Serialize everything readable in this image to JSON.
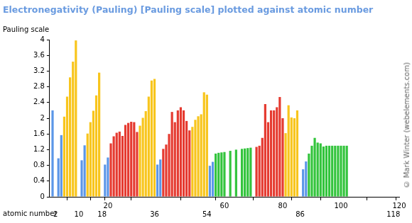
{
  "chart_data": {
    "type": "bar",
    "title": "Electronegativity (Pauling) [Pauling scale] plotted against atomic number",
    "ylabel": "Pauling scale",
    "xlabel": "atomic number",
    "annotations": [
      "© Mark Winter (webelements.com)"
    ],
    "x": [
      1,
      2,
      3,
      4,
      5,
      6,
      7,
      8,
      9,
      10,
      11,
      12,
      13,
      14,
      15,
      16,
      17,
      18,
      19,
      20,
      21,
      22,
      23,
      24,
      25,
      26,
      27,
      28,
      29,
      30,
      31,
      32,
      33,
      34,
      35,
      36,
      37,
      38,
      39,
      40,
      41,
      42,
      43,
      44,
      45,
      46,
      47,
      48,
      49,
      50,
      51,
      52,
      53,
      54,
      55,
      56,
      57,
      58,
      59,
      60,
      61,
      62,
      63,
      64,
      65,
      66,
      67,
      68,
      69,
      70,
      71,
      72,
      73,
      74,
      75,
      76,
      77,
      78,
      79,
      80,
      81,
      82,
      83,
      84,
      85,
      86,
      87,
      88,
      89,
      90,
      91,
      92,
      93,
      94,
      95,
      96,
      97,
      98,
      99,
      100,
      101,
      102,
      103,
      104,
      105,
      106,
      107,
      108,
      109,
      110,
      111,
      112,
      113,
      114,
      115,
      116,
      117,
      118
    ],
    "values": [
      2.2,
      null,
      0.98,
      1.57,
      2.04,
      2.55,
      3.04,
      3.44,
      3.98,
      null,
      0.93,
      1.31,
      1.61,
      1.9,
      2.19,
      2.58,
      3.16,
      null,
      0.82,
      1.0,
      1.36,
      1.54,
      1.63,
      1.66,
      1.55,
      1.83,
      1.88,
      1.91,
      1.9,
      1.65,
      1.81,
      2.01,
      2.18,
      2.55,
      2.96,
      3.0,
      0.82,
      0.95,
      1.22,
      1.33,
      1.6,
      2.16,
      1.9,
      2.2,
      2.28,
      2.2,
      1.93,
      1.69,
      1.78,
      1.96,
      2.05,
      2.1,
      2.66,
      2.6,
      0.79,
      0.89,
      1.1,
      1.12,
      1.13,
      1.14,
      null,
      1.17,
      null,
      1.2,
      null,
      1.22,
      1.23,
      1.24,
      1.25,
      null,
      1.27,
      1.3,
      1.5,
      2.36,
      1.9,
      2.2,
      2.2,
      2.28,
      2.54,
      2.0,
      1.62,
      2.33,
      2.02,
      2.0,
      2.2,
      null,
      0.7,
      0.9,
      1.1,
      1.3,
      1.5,
      1.38,
      1.36,
      1.28,
      1.3,
      1.3,
      1.3,
      1.3,
      1.3,
      1.3,
      1.3,
      1.3,
      null,
      null,
      null,
      null,
      null,
      null,
      null,
      null,
      null,
      null,
      null,
      null,
      null,
      null,
      null,
      null
    ],
    "colors": [
      "#5b96e8",
      null,
      "#5b96e8",
      "#5b96e8",
      "#f8c51c",
      "#f8c51c",
      "#f8c51c",
      "#f8c51c",
      "#f8c51c",
      null,
      "#5b96e8",
      "#5b96e8",
      "#f8c51c",
      "#f8c51c",
      "#f8c51c",
      "#f8c51c",
      "#f8c51c",
      null,
      "#5b96e8",
      "#5b96e8",
      "#e53a30",
      "#e53a30",
      "#e53a30",
      "#e53a30",
      "#e53a30",
      "#e53a30",
      "#e53a30",
      "#e53a30",
      "#e53a30",
      "#e53a30",
      "#f8c51c",
      "#f8c51c",
      "#f8c51c",
      "#f8c51c",
      "#f8c51c",
      "#f8c51c",
      "#5b96e8",
      "#5b96e8",
      "#e53a30",
      "#e53a30",
      "#e53a30",
      "#e53a30",
      "#e53a30",
      "#e53a30",
      "#e53a30",
      "#e53a30",
      "#e53a30",
      "#e53a30",
      "#f8c51c",
      "#f8c51c",
      "#f8c51c",
      "#f8c51c",
      "#f8c51c",
      "#f8c51c",
      "#5b96e8",
      "#5b96e8",
      "#33c43c",
      "#33c43c",
      "#33c43c",
      "#33c43c",
      null,
      "#33c43c",
      null,
      "#33c43c",
      null,
      "#33c43c",
      "#33c43c",
      "#33c43c",
      "#33c43c",
      null,
      "#e53a30",
      "#e53a30",
      "#e53a30",
      "#e53a30",
      "#e53a30",
      "#e53a30",
      "#e53a30",
      "#e53a30",
      "#e53a30",
      "#e53a30",
      "#f8c51c",
      "#f8c51c",
      "#f8c51c",
      "#f8c51c",
      "#f8c51c",
      null,
      "#5b96e8",
      "#5b96e8",
      "#33c43c",
      "#33c43c",
      "#33c43c",
      "#33c43c",
      "#33c43c",
      "#33c43c",
      "#33c43c",
      "#33c43c",
      "#33c43c",
      "#33c43c",
      "#33c43c",
      "#33c43c",
      "#33c43c",
      "#33c43c",
      null,
      null,
      null,
      null,
      null,
      null,
      null,
      null,
      null,
      null,
      null,
      null,
      null,
      null,
      null,
      null
    ],
    "xlim": [
      0,
      120
    ],
    "xticks": [
      2,
      10,
      18,
      20,
      36,
      54,
      60,
      80,
      86,
      100,
      118,
      120
    ],
    "ylim": [
      0,
      4
    ],
    "yticks": [
      0,
      0.4,
      0.8,
      1.2,
      1.6,
      2,
      2.4,
      2.8,
      3.2,
      3.6,
      4
    ],
    "grid": false
  }
}
